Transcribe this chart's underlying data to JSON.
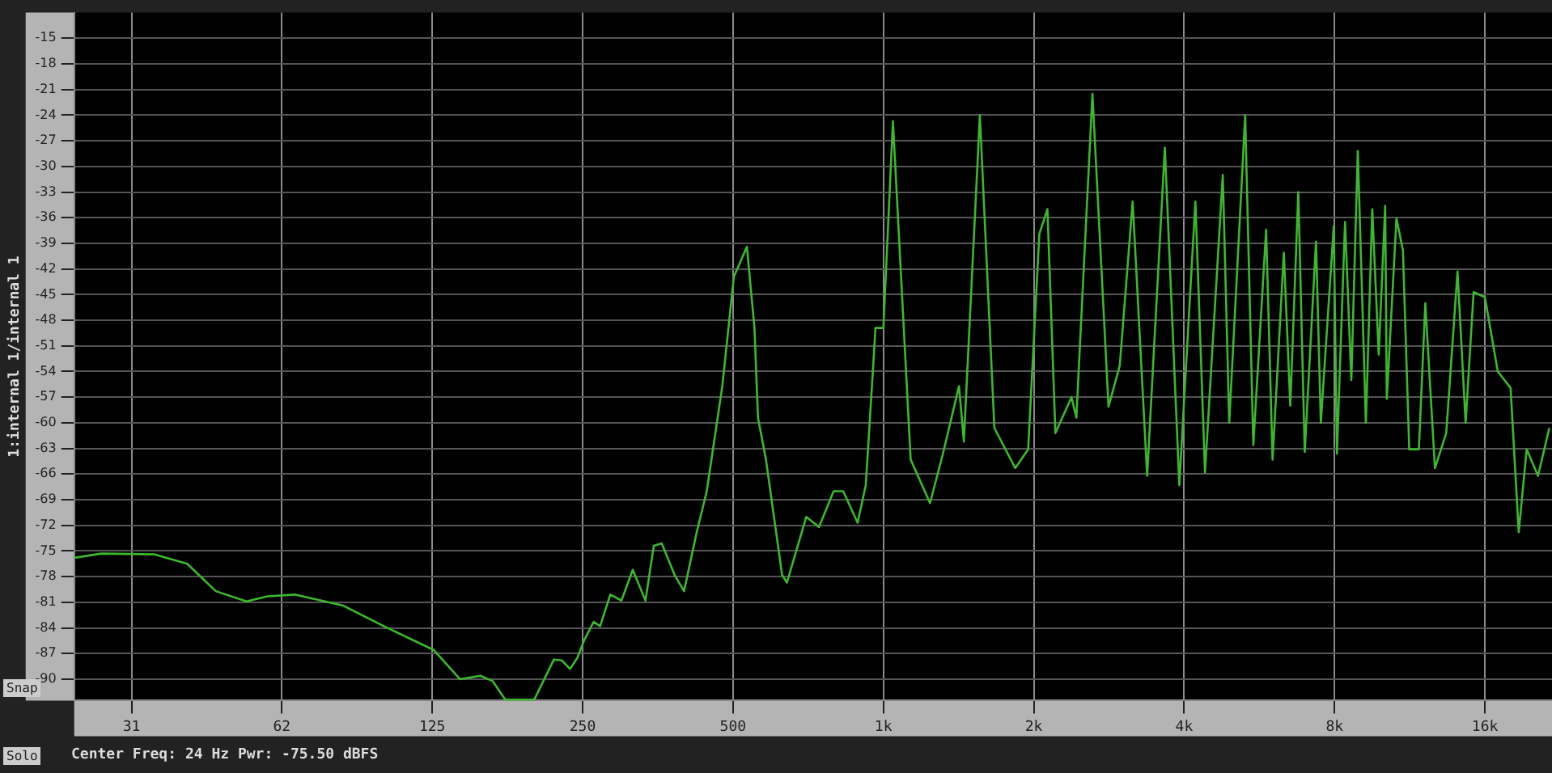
{
  "chart_data": {
    "type": "line",
    "ylabel": "1:internal 1/internal 1",
    "annotations": [
      "Center Freq: 24 Hz  Pwr: -75.50 dBFS",
      "Snap",
      "Solo"
    ],
    "xlim": [
      24,
      21800
    ],
    "log": "x",
    "xticks": [
      {
        "value": 31.25,
        "label": "31"
      },
      {
        "value": 62.5,
        "label": "62"
      },
      125,
      250,
      500,
      {
        "value": 1000,
        "label": "1k"
      },
      {
        "value": 2000,
        "label": "2k"
      },
      {
        "value": 4000,
        "label": "4k"
      },
      {
        "value": 8000,
        "label": "8k"
      },
      {
        "value": 16000,
        "label": "16k"
      }
    ],
    "ylim": [
      -92.5,
      -12
    ],
    "yticks": [
      -15,
      -18,
      -21,
      -24,
      -27,
      -30,
      -33,
      -36,
      -39,
      -42,
      -45,
      -48,
      -51,
      -54,
      -57,
      -60,
      -63,
      -66,
      -69,
      -72,
      -75,
      -78,
      -81,
      -84,
      -87,
      -90
    ],
    "grid": true,
    "legend": false,
    "marker": "none",
    "line_style": "solid",
    "series": [
      {
        "color": "#3cb82c",
        "x": [
          24,
          27.2,
          34.8,
          40.4,
          46.1,
          53.1,
          58.5,
          66.3,
          83,
          100,
          126,
          142,
          156,
          165,
          175,
          200,
          219,
          227,
          236,
          244,
          252,
          263,
          271,
          284,
          299,
          315,
          334,
          347,
          360,
          382,
          399,
          423,
          443,
          476,
          502,
          533,
          552,
          561,
          582,
          627,
          641,
          701,
          743,
          795,
          831,
          888,
          922,
          957,
          964,
          1000,
          1045,
          1134,
          1240,
          1316,
          1417,
          1449,
          1560,
          1668,
          1836,
          1949,
          2052,
          2130,
          2210,
          2380,
          2434,
          2621,
          2823,
          2973,
          3155,
          3373,
          3660,
          3912,
          4213,
          4404,
          4780,
          4924,
          5300,
          5502,
          5837,
          6013,
          6333,
          6525,
          6770,
          6974,
          7346,
          7511,
          7972,
          8089,
          8398,
          8645,
          8906,
          9245,
          9521,
          9808,
          10105,
          10180,
          10643,
          10966,
          11290,
          11802,
          12157,
          12710,
          13389,
          14103,
          14640,
          15190,
          16000,
          16980,
          18010,
          18700,
          19400,
          20440,
          21530
        ],
        "values": [
          -75.8,
          -75.3,
          -75.4,
          -76.5,
          -79.7,
          -80.9,
          -80.3,
          -80.1,
          -81.4,
          -83.8,
          -86.6,
          -90,
          -89.6,
          -90.2,
          -92.4,
          -92.4,
          -87.7,
          -87.8,
          -88.8,
          -87.5,
          -85.4,
          -83.3,
          -83.8,
          -80.1,
          -80.8,
          -77.2,
          -80.8,
          -74.4,
          -74.1,
          -77.8,
          -79.7,
          -72.8,
          -68,
          -55.7,
          -42.9,
          -39.4,
          -48.9,
          -59.4,
          -64.3,
          -77.8,
          -78.7,
          -71,
          -72.2,
          -68,
          -68,
          -71.7,
          -67.3,
          -52.1,
          -48.9,
          -48.9,
          -24.7,
          -64.3,
          -69.4,
          -63.6,
          -55.7,
          -62.2,
          -24,
          -60.6,
          -65.3,
          -63.1,
          -37.9,
          -35,
          -61.2,
          -57,
          -59.4,
          -21.5,
          -58.1,
          -53.3,
          -34.1,
          -66.2,
          -27.8,
          -67.3,
          -34.1,
          -65.8,
          -31,
          -60,
          -24,
          -62.6,
          -37.4,
          -64.3,
          -40.1,
          -58,
          -33,
          -63.4,
          -38.8,
          -60,
          -37,
          -63.6,
          -36.5,
          -55,
          -28.2,
          -60,
          -35,
          -52,
          -34.6,
          -57.2,
          -36.1,
          -39.8,
          -63.1,
          -63.1,
          -46,
          -65.3,
          -61.2,
          -42.3,
          -60,
          -44.7,
          -45.3,
          -54,
          -55.9,
          -72.8,
          -63.1,
          -66.2,
          -60.6
        ]
      }
    ]
  }
}
